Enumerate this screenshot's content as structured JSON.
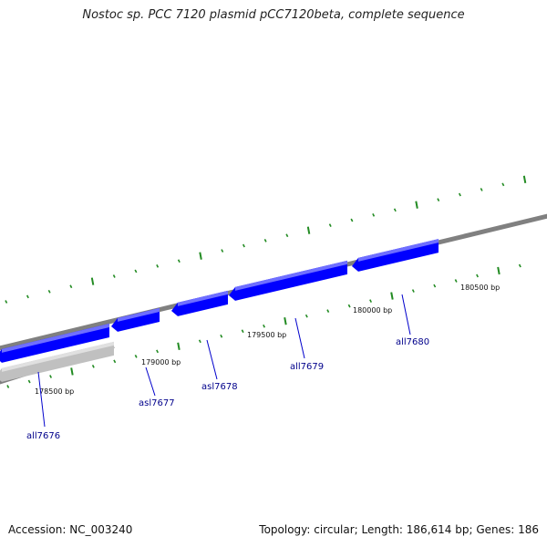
{
  "title": "Nostoc sp. PCC 7120 plasmid pCC7120beta, complete sequence",
  "footer": {
    "accession": "Accession: NC_003240",
    "summary": "Topology: circular; Length: 186,614 bp; Genes: 186"
  },
  "colors": {
    "gene_forward": "#0000ff",
    "gene_reverse": "#c0c0c0",
    "backbone": "#808080",
    "tick": "#228b22",
    "label_line": "#0000cc"
  },
  "position_labels": [
    "178500 bp",
    "179000 bp",
    "179500 bp",
    "180000 bp",
    "180500 bp"
  ],
  "genes": [
    {
      "name": "all7676"
    },
    {
      "name": "asl7677"
    },
    {
      "name": "asl7678"
    },
    {
      "name": "all7679"
    },
    {
      "name": "all7680"
    }
  ]
}
